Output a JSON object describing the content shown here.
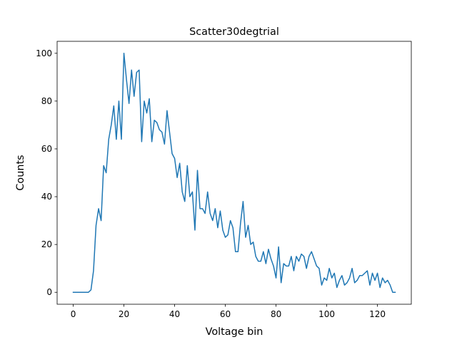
{
  "chart_data": {
    "type": "line",
    "title": "Scatter30degtrial",
    "xlabel": "Voltage bin",
    "ylabel": "Counts",
    "xlim": [
      -6.35,
      133.35
    ],
    "ylim": [
      -5,
      105
    ],
    "xticks": [
      0,
      20,
      40,
      60,
      80,
      100,
      120
    ],
    "yticks": [
      0,
      20,
      40,
      60,
      80,
      100
    ],
    "grid": false,
    "series": [
      {
        "color": "#1f77b4",
        "x": [
          0,
          1,
          2,
          3,
          4,
          5,
          6,
          7,
          8,
          9,
          10,
          11,
          12,
          13,
          14,
          15,
          16,
          17,
          18,
          19,
          20,
          21,
          22,
          23,
          24,
          25,
          26,
          27,
          28,
          29,
          30,
          31,
          32,
          33,
          34,
          35,
          36,
          37,
          38,
          39,
          40,
          41,
          42,
          43,
          44,
          45,
          46,
          47,
          48,
          49,
          50,
          51,
          52,
          53,
          54,
          55,
          56,
          57,
          58,
          59,
          60,
          61,
          62,
          63,
          64,
          65,
          66,
          67,
          68,
          69,
          70,
          71,
          72,
          73,
          74,
          75,
          76,
          77,
          78,
          79,
          80,
          81,
          82,
          83,
          84,
          85,
          86,
          87,
          88,
          89,
          90,
          91,
          92,
          93,
          94,
          95,
          96,
          97,
          98,
          99,
          100,
          101,
          102,
          103,
          104,
          105,
          106,
          107,
          108,
          109,
          110,
          111,
          112,
          113,
          114,
          115,
          116,
          117,
          118,
          119,
          120,
          121,
          122,
          123,
          124,
          125,
          126,
          127
        ],
        "values": [
          0,
          0,
          0,
          0,
          0,
          0,
          0,
          1,
          9,
          28,
          35,
          30,
          53,
          50,
          64,
          70,
          78,
          64,
          80,
          64,
          100,
          89,
          79,
          93,
          82,
          92,
          93,
          63,
          80,
          75,
          81,
          63,
          72,
          71,
          68,
          67,
          62,
          76,
          67,
          58,
          56,
          48,
          54,
          42,
          38,
          53,
          40,
          42,
          26,
          51,
          35,
          35,
          33,
          42,
          33,
          30,
          35,
          27,
          34,
          26,
          23,
          24,
          30,
          27,
          17,
          17,
          29,
          38,
          23,
          28,
          20,
          21,
          15,
          13,
          13,
          17,
          12,
          18,
          14,
          11,
          6,
          19,
          4,
          12,
          11,
          11,
          15,
          9,
          15,
          13,
          16,
          15,
          10,
          15,
          17,
          14,
          11,
          10,
          3,
          6,
          5,
          10,
          6,
          8,
          2,
          5,
          7,
          3,
          4,
          6,
          10,
          4,
          5,
          7,
          7,
          8,
          9,
          3,
          8,
          5,
          8,
          2,
          6,
          4,
          5,
          3,
          0,
          0
        ]
      }
    ]
  }
}
